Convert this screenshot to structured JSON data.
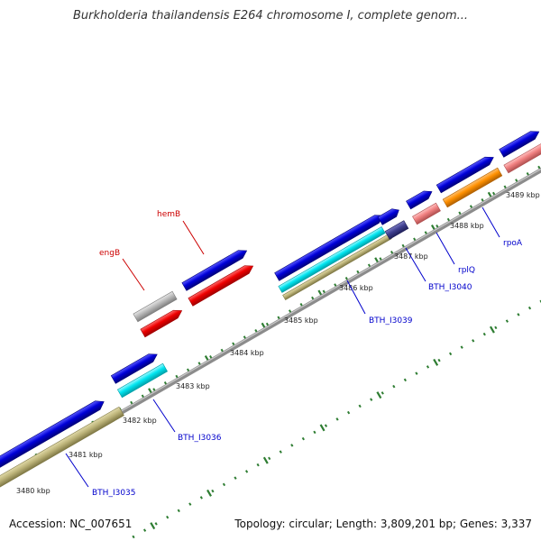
{
  "title": "Burkholderia thailandensis E264 chromosome I, complete genom...",
  "footer": {
    "accession": "Accession: NC_007651",
    "summary": "Topology: circular; Length: 3,809,201 bp; Genes: 3,337"
  },
  "colors": {
    "backbone": "#8c8c8c",
    "major_tick": "#2e7d32",
    "minor_tick": "#2e7d32",
    "label_link_blue": "#0000cc",
    "label_link_red": "#cc0000"
  },
  "scale_labels": [
    "3480 kbp",
    "3481 kbp",
    "3482 kbp",
    "3483 kbp",
    "3484 kbp",
    "3485 kbp",
    "3486 kbp",
    "3487 kbp",
    "3488 kbp",
    "3489 kbp"
  ],
  "features": [
    {
      "color": "blue"
    },
    {
      "color": "khaki"
    },
    {
      "color": "blue"
    },
    {
      "color": "cyan"
    },
    {
      "color": "grey"
    },
    {
      "color": "red"
    },
    {
      "color": "blue"
    },
    {
      "color": "red"
    },
    {
      "color": "blue"
    },
    {
      "color": "cyan"
    },
    {
      "color": "khaki"
    },
    {
      "color": "blue"
    },
    {
      "color": "navy"
    },
    {
      "color": "blue"
    },
    {
      "color": "pink"
    },
    {
      "color": "blue"
    },
    {
      "color": "orange"
    },
    {
      "color": "blue"
    },
    {
      "color": "pink"
    }
  ],
  "gene_labels": [
    {
      "text": "BTH_I3035",
      "color": "blue"
    },
    {
      "text": "BTH_I3036",
      "color": "blue"
    },
    {
      "text": "engB",
      "color": "red"
    },
    {
      "text": "hemB",
      "color": "red"
    },
    {
      "text": "BTH_I3039",
      "color": "blue"
    },
    {
      "text": "BTH_I3040",
      "color": "blue"
    },
    {
      "text": "rplQ",
      "color": "blue"
    },
    {
      "text": "rpoA",
      "color": "blue"
    }
  ]
}
